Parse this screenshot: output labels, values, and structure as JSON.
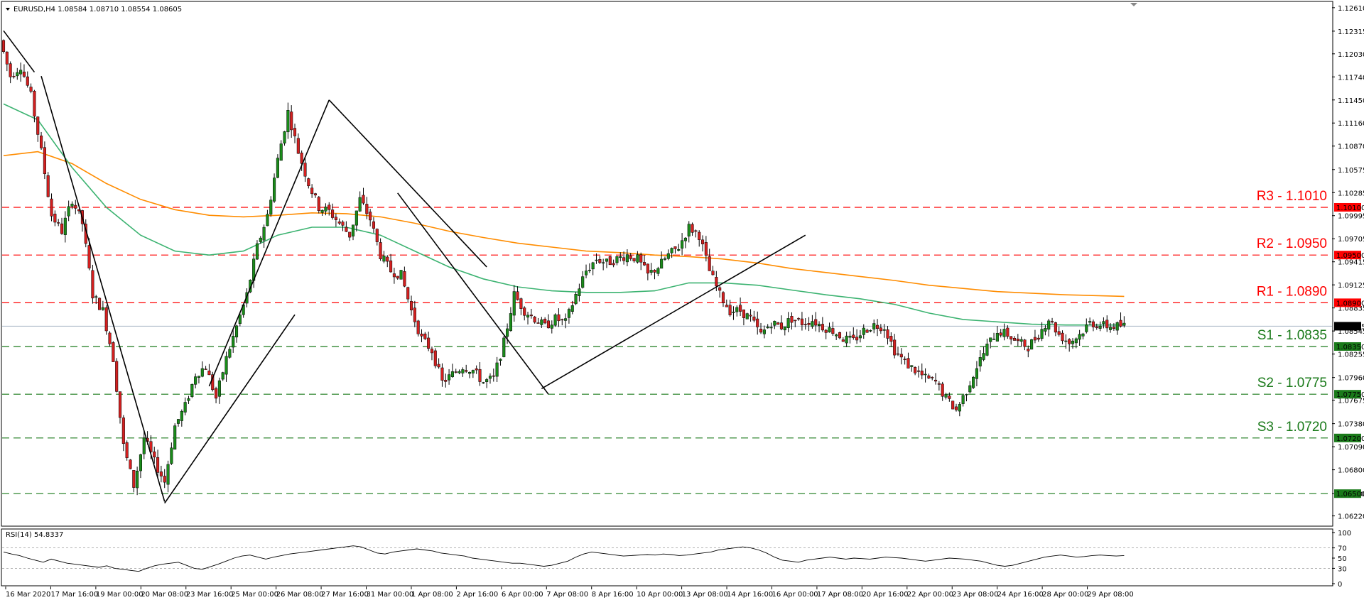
{
  "chart_data": {
    "type": "candlestick",
    "title": "EURUSD,H4  1.08584 1.08710 1.08554 1.08605",
    "symbol": "EURUSD",
    "timeframe": "H4",
    "ohlc_last": {
      "open": 1.08584,
      "high": 1.0871,
      "low": 1.08554,
      "close": 1.08605
    },
    "current_price_label": "1.08605",
    "ylim": [
      1.061,
      1.1268
    ],
    "y_ticks": [
      "1.12610",
      "1.12315",
      "1.12030",
      "1.11740",
      "1.11450",
      "1.11160",
      "1.10870",
      "1.10575",
      "1.10285",
      "1.09995",
      "1.09705",
      "1.09415",
      "1.09125",
      "1.08835",
      "1.08545",
      "1.08255",
      "1.07960",
      "1.07675",
      "1.07380",
      "1.07090",
      "1.06800",
      "1.06500",
      "1.06220"
    ],
    "x_ticks": [
      "16 Mar 2020",
      "17 Mar 16:00",
      "19 Mar 00:00",
      "20 Mar 08:00",
      "23 Mar 16:00",
      "25 Mar 00:00",
      "26 Mar 08:00",
      "27 Mar 16:00",
      "31 Mar 00:00",
      "1 Apr 08:00",
      "2 Apr 16:00",
      "6 Apr 00:00",
      "7 Apr 08:00",
      "8 Apr 16:00",
      "10 Apr 00:00",
      "13 Apr 08:00",
      "14 Apr 16:00",
      "16 Apr 00:00",
      "17 Apr 08:00",
      "20 Apr 16:00",
      "22 Apr 00:00",
      "23 Apr 08:00",
      "24 Apr 16:00",
      "28 Apr 00:00",
      "29 Apr 08:00"
    ],
    "levels": [
      {
        "label": "R3 - 1.1010",
        "tag": "1.10100",
        "value": 1.101,
        "color": "#ff0000"
      },
      {
        "label": "R2 - 1.0950",
        "tag": "1.09500",
        "value": 1.095,
        "color": "#ff0000"
      },
      {
        "label": "R1 - 1.0890",
        "tag": "1.08900",
        "value": 1.089,
        "color": "#ff0000"
      },
      {
        "label": "S1 - 1.0835",
        "tag": "1.08350",
        "value": 1.0835,
        "color": "#1a7a1a"
      },
      {
        "label": "S2 - 1.0775",
        "tag": "1.07750",
        "value": 1.0775,
        "color": "#1a7a1a"
      },
      {
        "label": "S3 - 1.0720",
        "tag": "1.07200",
        "value": 1.072,
        "color": "#1a7a1a"
      },
      {
        "label": "",
        "tag": "1.06500",
        "value": 1.065,
        "color": "#1a7a1a"
      }
    ],
    "path_points": [
      [
        0,
        1.122
      ],
      [
        3,
        1.1175
      ],
      [
        6,
        1.1188
      ],
      [
        9,
        1.115
      ],
      [
        12,
        1.108
      ],
      [
        15,
        1.1
      ],
      [
        18,
        1.098
      ],
      [
        21,
        1.102
      ],
      [
        24,
        1.099
      ],
      [
        27,
        1.09
      ],
      [
        30,
        1.088
      ],
      [
        33,
        1.082
      ],
      [
        36,
        1.071
      ],
      [
        39,
        1.066
      ],
      [
        42,
        1.072
      ],
      [
        45,
        1.069
      ],
      [
        48,
        1.0665
      ],
      [
        51,
        1.0735
      ],
      [
        54,
        1.076
      ],
      [
        57,
        1.08
      ],
      [
        60,
        1.081
      ],
      [
        63,
        1.077
      ],
      [
        66,
        1.082
      ],
      [
        69,
        1.086
      ],
      [
        72,
        1.09
      ],
      [
        75,
        1.096
      ],
      [
        78,
        1.1
      ],
      [
        81,
        1.107
      ],
      [
        84,
        1.113
      ],
      [
        87,
        1.108
      ],
      [
        90,
        1.104
      ],
      [
        93,
        1.101
      ],
      [
        96,
        1.1005
      ],
      [
        99,
        1.099
      ],
      [
        102,
        1.0975
      ],
      [
        105,
        1.102
      ],
      [
        108,
        1.0995
      ],
      [
        111,
        1.095
      ],
      [
        114,
        1.093
      ],
      [
        117,
        1.0925
      ],
      [
        120,
        1.088
      ],
      [
        123,
        1.0845
      ],
      [
        126,
        1.083
      ],
      [
        129,
        1.079
      ],
      [
        132,
        1.08
      ],
      [
        135,
        1.081
      ],
      [
        138,
        1.0805
      ],
      [
        141,
        1.079
      ],
      [
        144,
        1.0795
      ],
      [
        147,
        1.084
      ],
      [
        150,
        1.09
      ],
      [
        153,
        1.088
      ],
      [
        156,
        1.087
      ],
      [
        159,
        1.086
      ],
      [
        162,
        1.087
      ],
      [
        165,
        1.0865
      ],
      [
        168,
        1.09
      ],
      [
        171,
        1.093
      ],
      [
        174,
        1.0945
      ],
      [
        177,
        1.094
      ],
      [
        180,
        1.0945
      ],
      [
        183,
        1.095
      ],
      [
        186,
        1.0945
      ],
      [
        189,
        1.0925
      ],
      [
        192,
        1.0935
      ],
      [
        195,
        1.095
      ],
      [
        198,
        1.096
      ],
      [
        201,
        1.0985
      ],
      [
        204,
        1.0975
      ],
      [
        207,
        1.093
      ],
      [
        210,
        1.09
      ],
      [
        213,
        1.088
      ],
      [
        216,
        1.088
      ],
      [
        219,
        1.087
      ],
      [
        222,
        1.085
      ],
      [
        225,
        1.0865
      ],
      [
        228,
        1.086
      ],
      [
        231,
        1.087
      ],
      [
        234,
        1.0865
      ],
      [
        237,
        1.0868
      ],
      [
        240,
        1.086
      ],
      [
        243,
        1.0855
      ],
      [
        246,
        1.0845
      ],
      [
        249,
        1.0842
      ],
      [
        252,
        1.0855
      ],
      [
        255,
        1.0862
      ],
      [
        258,
        1.086
      ],
      [
        261,
        1.083
      ],
      [
        264,
        1.0815
      ],
      [
        267,
        1.0805
      ],
      [
        270,
        1.0795
      ],
      [
        273,
        1.079
      ],
      [
        276,
        1.077
      ],
      [
        279,
        1.0755
      ],
      [
        282,
        1.078
      ],
      [
        285,
        1.081
      ],
      [
        288,
        1.0835
      ],
      [
        291,
        1.0855
      ],
      [
        294,
        1.085
      ],
      [
        297,
        1.084
      ],
      [
        300,
        1.0835
      ],
      [
        303,
        1.085
      ],
      [
        306,
        1.087
      ],
      [
        309,
        1.085
      ],
      [
        312,
        1.084
      ],
      [
        315,
        1.085
      ],
      [
        318,
        1.0865
      ],
      [
        321,
        1.0862
      ],
      [
        324,
        1.086
      ],
      [
        327,
        1.0861
      ]
    ],
    "ma_green": [
      [
        0,
        1.114
      ],
      [
        10,
        1.112
      ],
      [
        20,
        1.106
      ],
      [
        30,
        1.101
      ],
      [
        40,
        1.0975
      ],
      [
        50,
        1.0955
      ],
      [
        60,
        1.095
      ],
      [
        70,
        1.0955
      ],
      [
        80,
        1.0975
      ],
      [
        90,
        1.0985
      ],
      [
        100,
        1.0985
      ],
      [
        110,
        1.0975
      ],
      [
        120,
        1.0955
      ],
      [
        130,
        1.0935
      ],
      [
        140,
        1.092
      ],
      [
        150,
        1.091
      ],
      [
        160,
        1.0905
      ],
      [
        170,
        1.0903
      ],
      [
        180,
        1.0903
      ],
      [
        190,
        1.0905
      ],
      [
        200,
        1.0915
      ],
      [
        210,
        1.0915
      ],
      [
        220,
        1.0912
      ],
      [
        230,
        1.0906
      ],
      [
        240,
        1.09
      ],
      [
        250,
        1.0895
      ],
      [
        260,
        1.0888
      ],
      [
        270,
        1.0877
      ],
      [
        280,
        1.0869
      ],
      [
        290,
        1.0866
      ],
      [
        300,
        1.0863
      ],
      [
        310,
        1.0862
      ],
      [
        327,
        1.0862
      ]
    ],
    "ma_orange": [
      [
        0,
        1.1075
      ],
      [
        10,
        1.108
      ],
      [
        20,
        1.1065
      ],
      [
        30,
        1.104
      ],
      [
        40,
        1.102
      ],
      [
        50,
        1.1007
      ],
      [
        60,
        1.1
      ],
      [
        70,
        1.0998
      ],
      [
        80,
        1.1
      ],
      [
        90,
        1.1003
      ],
      [
        100,
        1.1002
      ],
      [
        110,
        1.0998
      ],
      [
        120,
        1.099
      ],
      [
        130,
        1.098
      ],
      [
        140,
        1.0972
      ],
      [
        150,
        1.0965
      ],
      [
        160,
        1.096
      ],
      [
        170,
        1.0955
      ],
      [
        180,
        1.0953
      ],
      [
        190,
        1.095
      ],
      [
        200,
        1.0948
      ],
      [
        210,
        1.0945
      ],
      [
        220,
        1.094
      ],
      [
        230,
        1.0933
      ],
      [
        240,
        1.0928
      ],
      [
        250,
        1.0923
      ],
      [
        260,
        1.0918
      ],
      [
        270,
        1.0912
      ],
      [
        280,
        1.0908
      ],
      [
        290,
        1.0904
      ],
      [
        300,
        1.0902
      ],
      [
        310,
        1.09
      ],
      [
        327,
        1.0898
      ]
    ],
    "trendlines": [
      {
        "from": [
          0,
          1.1232
        ],
        "to": [
          9,
          1.118
        ],
        "color": "#000000"
      },
      {
        "from": [
          11,
          1.1175
        ],
        "to": [
          47,
          1.064
        ],
        "color": "#000000"
      },
      {
        "from": [
          47,
          1.0638
        ],
        "to": [
          85,
          1.0875
        ],
        "color": "#000000"
      },
      {
        "from": [
          60,
          1.0785
        ],
        "to": [
          95,
          1.1145
        ],
        "color": "#000000"
      },
      {
        "from": [
          95,
          1.1145
        ],
        "to": [
          141,
          1.0935
        ],
        "color": "#000000"
      },
      {
        "from": [
          115,
          1.1028
        ],
        "to": [
          159,
          1.0775
        ],
        "color": "#000000"
      },
      {
        "from": [
          157,
          1.0782
        ],
        "to": [
          234,
          1.0975
        ],
        "color": "#000000"
      }
    ],
    "rsi": {
      "label": "RSI(14) 54.8337",
      "period": 14,
      "value": 54.8337,
      "ylim": [
        0,
        100
      ],
      "y_ticks": [
        "100",
        "70",
        "50",
        "30",
        "0"
      ],
      "levels": [
        70,
        30
      ],
      "values": [
        62,
        58,
        55,
        50,
        46,
        42,
        48,
        44,
        40,
        38,
        36,
        34,
        32,
        35,
        30,
        28,
        26,
        24,
        30,
        35,
        38,
        40,
        42,
        36,
        30,
        28,
        33,
        38,
        44,
        50,
        54,
        56,
        52,
        48,
        52,
        55,
        58,
        60,
        62,
        64,
        66,
        68,
        70,
        72,
        74,
        72,
        66,
        60,
        58,
        62,
        64,
        66,
        68,
        66,
        64,
        60,
        58,
        56,
        54,
        50,
        48,
        46,
        44,
        42,
        40,
        40,
        38,
        36,
        34,
        36,
        40,
        44,
        52,
        58,
        62,
        60,
        58,
        56,
        54,
        55,
        56,
        57,
        56,
        58,
        57,
        55,
        56,
        58,
        60,
        62,
        66,
        68,
        70,
        72,
        70,
        66,
        60,
        52,
        46,
        44,
        42,
        46,
        48,
        50,
        52,
        50,
        48,
        50,
        49,
        48,
        50,
        52,
        51,
        50,
        48,
        46,
        44,
        46,
        48,
        50,
        49,
        48,
        46,
        44,
        40,
        36,
        34,
        36,
        40,
        44,
        48,
        52,
        54,
        56,
        54,
        52,
        53,
        55,
        56,
        55,
        54,
        55
      ]
    }
  }
}
